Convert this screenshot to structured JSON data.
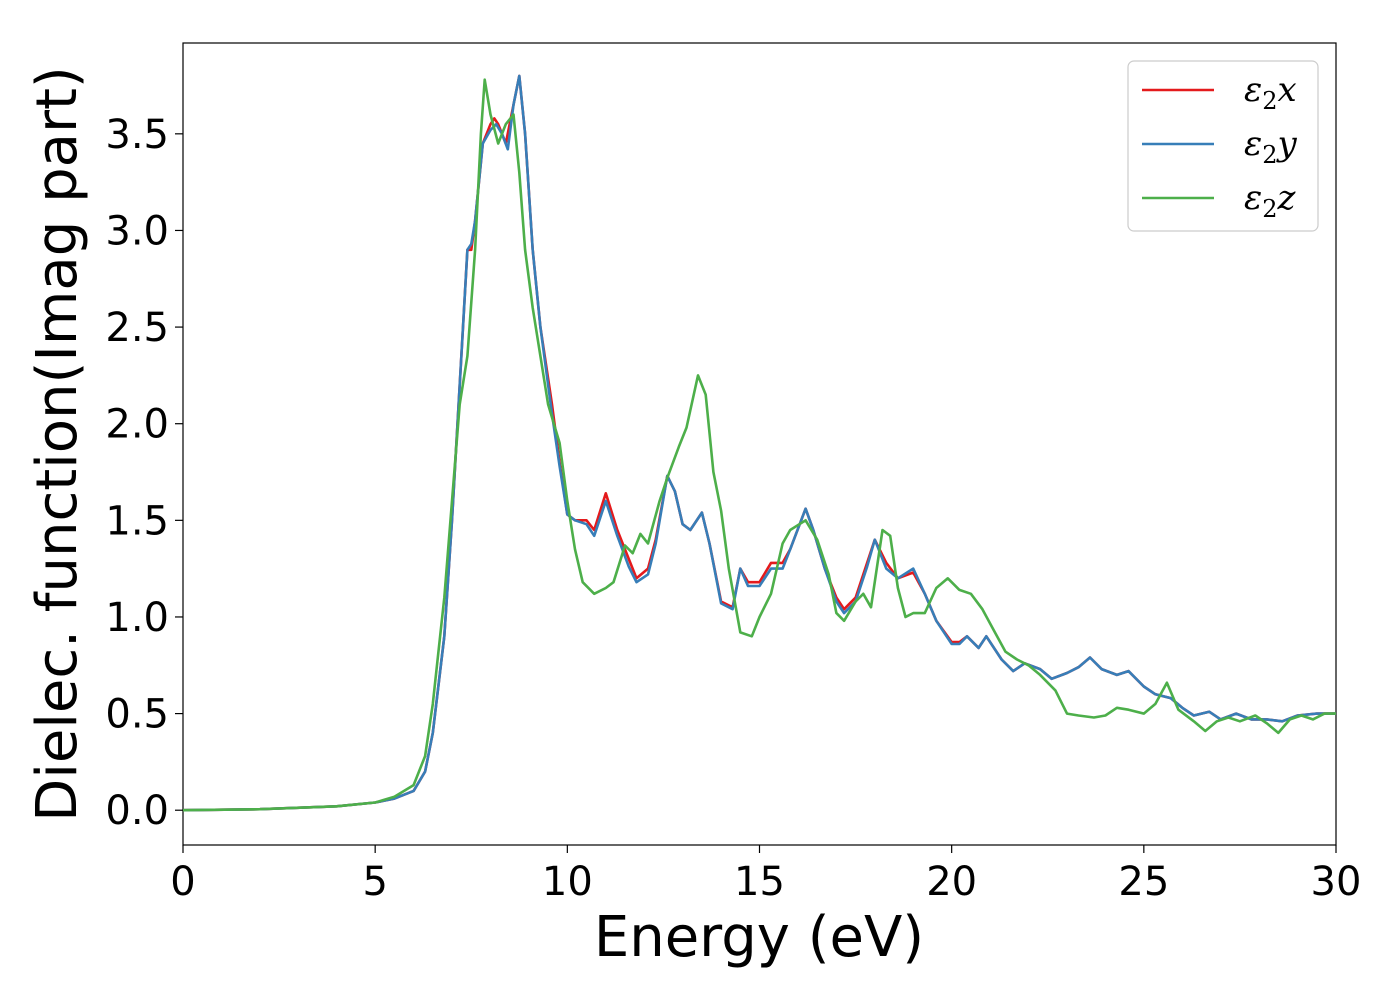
{
  "chart_data": {
    "type": "line",
    "xlabel": "Energy (eV)",
    "ylabel": "Dielec. function(Imag part)",
    "xlim": [
      0,
      30
    ],
    "ylim": [
      -0.18,
      3.97
    ],
    "xticks": [
      0,
      5,
      10,
      15,
      20,
      25,
      30
    ],
    "yticks": [
      0.0,
      0.5,
      1.0,
      1.5,
      2.0,
      2.5,
      3.0,
      3.5
    ],
    "xtick_labels": [
      "0",
      "5",
      "10",
      "15",
      "20",
      "25",
      "30"
    ],
    "ytick_labels": [
      "0.0",
      "0.5",
      "1.0",
      "1.5",
      "2.0",
      "2.5",
      "3.0",
      "3.5"
    ],
    "grid": false,
    "legend_position": "top-right",
    "legend": [
      {
        "base": "ε",
        "sub": "2",
        "suffix": "x",
        "color": "#e41a1c"
      },
      {
        "base": "ε",
        "sub": "2",
        "suffix": "y",
        "color": "#377eb8"
      },
      {
        "base": "ε",
        "sub": "2",
        "suffix": "z",
        "color": "#4daf4a"
      }
    ],
    "series": [
      {
        "name": "ε2x",
        "color": "#e41a1c",
        "points": [
          [
            0,
            0
          ],
          [
            2,
            0.005
          ],
          [
            4,
            0.02
          ],
          [
            5,
            0.04
          ],
          [
            5.5,
            0.06
          ],
          [
            6,
            0.1
          ],
          [
            6.3,
            0.2
          ],
          [
            6.5,
            0.4
          ],
          [
            6.8,
            0.9
          ],
          [
            7,
            1.5
          ],
          [
            7.2,
            2.2
          ],
          [
            7.4,
            2.9
          ],
          [
            7.5,
            2.9
          ],
          [
            7.6,
            3.05
          ],
          [
            7.8,
            3.45
          ],
          [
            8,
            3.55
          ],
          [
            8.1,
            3.58
          ],
          [
            8.2,
            3.55
          ],
          [
            8.4,
            3.45
          ],
          [
            8.6,
            3.65
          ],
          [
            8.75,
            3.8
          ],
          [
            8.9,
            3.5
          ],
          [
            9.1,
            2.9
          ],
          [
            9.3,
            2.5
          ],
          [
            9.6,
            2.1
          ],
          [
            9.8,
            1.8
          ],
          [
            10,
            1.53
          ],
          [
            10.2,
            1.5
          ],
          [
            10.5,
            1.5
          ],
          [
            10.7,
            1.45
          ],
          [
            11,
            1.64
          ],
          [
            11.3,
            1.45
          ],
          [
            11.6,
            1.3
          ],
          [
            11.8,
            1.2
          ],
          [
            12.1,
            1.25
          ],
          [
            12.3,
            1.4
          ],
          [
            12.6,
            1.73
          ],
          [
            12.8,
            1.65
          ],
          [
            13,
            1.48
          ],
          [
            13.2,
            1.45
          ],
          [
            13.5,
            1.54
          ],
          [
            13.7,
            1.38
          ],
          [
            14,
            1.08
          ],
          [
            14.3,
            1.05
          ],
          [
            14.5,
            1.25
          ],
          [
            14.7,
            1.18
          ],
          [
            15,
            1.18
          ],
          [
            15.3,
            1.28
          ],
          [
            15.6,
            1.28
          ],
          [
            15.8,
            1.35
          ],
          [
            16.2,
            1.56
          ],
          [
            16.4,
            1.45
          ],
          [
            16.7,
            1.25
          ],
          [
            17,
            1.1
          ],
          [
            17.2,
            1.04
          ],
          [
            17.5,
            1.1
          ],
          [
            17.8,
            1.28
          ],
          [
            18,
            1.4
          ],
          [
            18.3,
            1.28
          ],
          [
            18.6,
            1.2
          ],
          [
            19,
            1.23
          ],
          [
            19.3,
            1.12
          ],
          [
            19.6,
            0.98
          ],
          [
            20,
            0.87
          ],
          [
            20.2,
            0.87
          ],
          [
            20.4,
            0.9
          ],
          [
            20.7,
            0.84
          ],
          [
            20.9,
            0.9
          ],
          [
            21.3,
            0.78
          ],
          [
            21.6,
            0.72
          ],
          [
            21.9,
            0.76
          ],
          [
            22.3,
            0.73
          ],
          [
            22.6,
            0.68
          ],
          [
            23,
            0.71
          ],
          [
            23.3,
            0.74
          ],
          [
            23.6,
            0.79
          ],
          [
            23.9,
            0.73
          ],
          [
            24.3,
            0.7
          ],
          [
            24.6,
            0.72
          ],
          [
            25,
            0.64
          ],
          [
            25.3,
            0.6
          ],
          [
            25.7,
            0.58
          ],
          [
            26,
            0.53
          ],
          [
            26.3,
            0.49
          ],
          [
            26.7,
            0.51
          ],
          [
            27,
            0.47
          ],
          [
            27.4,
            0.5
          ],
          [
            27.8,
            0.47
          ],
          [
            28.2,
            0.47
          ],
          [
            28.6,
            0.46
          ],
          [
            29,
            0.49
          ],
          [
            29.5,
            0.5
          ],
          [
            30,
            0.5
          ]
        ]
      },
      {
        "name": "ε2y",
        "color": "#377eb8",
        "points": [
          [
            0,
            0
          ],
          [
            2,
            0.005
          ],
          [
            4,
            0.02
          ],
          [
            5,
            0.04
          ],
          [
            5.5,
            0.06
          ],
          [
            6,
            0.1
          ],
          [
            6.3,
            0.2
          ],
          [
            6.5,
            0.4
          ],
          [
            6.8,
            0.9
          ],
          [
            7,
            1.5
          ],
          [
            7.2,
            2.2
          ],
          [
            7.4,
            2.9
          ],
          [
            7.5,
            2.93
          ],
          [
            7.6,
            3.05
          ],
          [
            7.8,
            3.45
          ],
          [
            8,
            3.52
          ],
          [
            8.15,
            3.55
          ],
          [
            8.3,
            3.5
          ],
          [
            8.45,
            3.42
          ],
          [
            8.6,
            3.65
          ],
          [
            8.75,
            3.8
          ],
          [
            8.9,
            3.5
          ],
          [
            9.1,
            2.9
          ],
          [
            9.3,
            2.5
          ],
          [
            9.6,
            2.05
          ],
          [
            9.8,
            1.78
          ],
          [
            10,
            1.53
          ],
          [
            10.2,
            1.5
          ],
          [
            10.5,
            1.48
          ],
          [
            10.7,
            1.42
          ],
          [
            11,
            1.6
          ],
          [
            11.3,
            1.42
          ],
          [
            11.6,
            1.26
          ],
          [
            11.8,
            1.18
          ],
          [
            12.1,
            1.22
          ],
          [
            12.3,
            1.38
          ],
          [
            12.6,
            1.73
          ],
          [
            12.8,
            1.65
          ],
          [
            13,
            1.48
          ],
          [
            13.2,
            1.45
          ],
          [
            13.5,
            1.54
          ],
          [
            13.7,
            1.38
          ],
          [
            14,
            1.07
          ],
          [
            14.3,
            1.04
          ],
          [
            14.5,
            1.25
          ],
          [
            14.7,
            1.16
          ],
          [
            15,
            1.16
          ],
          [
            15.3,
            1.25
          ],
          [
            15.6,
            1.25
          ],
          [
            15.8,
            1.35
          ],
          [
            16.2,
            1.56
          ],
          [
            16.4,
            1.45
          ],
          [
            16.7,
            1.25
          ],
          [
            17,
            1.08
          ],
          [
            17.2,
            1.02
          ],
          [
            17.5,
            1.08
          ],
          [
            17.8,
            1.26
          ],
          [
            18,
            1.4
          ],
          [
            18.3,
            1.25
          ],
          [
            18.6,
            1.2
          ],
          [
            19,
            1.25
          ],
          [
            19.3,
            1.12
          ],
          [
            19.6,
            0.98
          ],
          [
            20,
            0.86
          ],
          [
            20.2,
            0.86
          ],
          [
            20.4,
            0.9
          ],
          [
            20.7,
            0.84
          ],
          [
            20.9,
            0.9
          ],
          [
            21.3,
            0.78
          ],
          [
            21.6,
            0.72
          ],
          [
            21.9,
            0.76
          ],
          [
            22.3,
            0.73
          ],
          [
            22.6,
            0.68
          ],
          [
            23,
            0.71
          ],
          [
            23.3,
            0.74
          ],
          [
            23.6,
            0.79
          ],
          [
            23.9,
            0.73
          ],
          [
            24.3,
            0.7
          ],
          [
            24.6,
            0.72
          ],
          [
            25,
            0.64
          ],
          [
            25.3,
            0.6
          ],
          [
            25.7,
            0.58
          ],
          [
            26,
            0.53
          ],
          [
            26.3,
            0.49
          ],
          [
            26.7,
            0.51
          ],
          [
            27,
            0.47
          ],
          [
            27.4,
            0.5
          ],
          [
            27.8,
            0.47
          ],
          [
            28.2,
            0.47
          ],
          [
            28.6,
            0.46
          ],
          [
            29,
            0.49
          ],
          [
            29.5,
            0.5
          ],
          [
            30,
            0.5
          ]
        ]
      },
      {
        "name": "ε2z",
        "color": "#4daf4a",
        "points": [
          [
            0,
            0
          ],
          [
            2,
            0.005
          ],
          [
            4,
            0.02
          ],
          [
            5,
            0.04
          ],
          [
            5.5,
            0.07
          ],
          [
            6,
            0.13
          ],
          [
            6.3,
            0.28
          ],
          [
            6.5,
            0.55
          ],
          [
            6.8,
            1.1
          ],
          [
            7,
            1.6
          ],
          [
            7.2,
            2.1
          ],
          [
            7.4,
            2.35
          ],
          [
            7.6,
            2.9
          ],
          [
            7.75,
            3.5
          ],
          [
            7.85,
            3.78
          ],
          [
            8,
            3.6
          ],
          [
            8.2,
            3.45
          ],
          [
            8.4,
            3.55
          ],
          [
            8.6,
            3.6
          ],
          [
            8.75,
            3.3
          ],
          [
            8.9,
            2.9
          ],
          [
            9.1,
            2.6
          ],
          [
            9.3,
            2.35
          ],
          [
            9.5,
            2.1
          ],
          [
            9.8,
            1.9
          ],
          [
            10,
            1.6
          ],
          [
            10.2,
            1.35
          ],
          [
            10.4,
            1.18
          ],
          [
            10.7,
            1.12
          ],
          [
            11,
            1.15
          ],
          [
            11.2,
            1.18
          ],
          [
            11.5,
            1.37
          ],
          [
            11.7,
            1.33
          ],
          [
            11.9,
            1.43
          ],
          [
            12.1,
            1.38
          ],
          [
            12.4,
            1.6
          ],
          [
            12.6,
            1.72
          ],
          [
            12.9,
            1.88
          ],
          [
            13.1,
            1.98
          ],
          [
            13.4,
            2.25
          ],
          [
            13.6,
            2.15
          ],
          [
            13.8,
            1.75
          ],
          [
            14,
            1.55
          ],
          [
            14.2,
            1.25
          ],
          [
            14.5,
            0.92
          ],
          [
            14.8,
            0.9
          ],
          [
            15,
            1.0
          ],
          [
            15.3,
            1.12
          ],
          [
            15.6,
            1.38
          ],
          [
            15.8,
            1.45
          ],
          [
            16.2,
            1.5
          ],
          [
            16.5,
            1.4
          ],
          [
            16.8,
            1.22
          ],
          [
            17,
            1.02
          ],
          [
            17.2,
            0.98
          ],
          [
            17.5,
            1.08
          ],
          [
            17.7,
            1.12
          ],
          [
            17.9,
            1.05
          ],
          [
            18.2,
            1.45
          ],
          [
            18.4,
            1.42
          ],
          [
            18.6,
            1.15
          ],
          [
            18.8,
            1.0
          ],
          [
            19,
            1.02
          ],
          [
            19.3,
            1.02
          ],
          [
            19.6,
            1.15
          ],
          [
            19.9,
            1.2
          ],
          [
            20.2,
            1.14
          ],
          [
            20.5,
            1.12
          ],
          [
            20.8,
            1.04
          ],
          [
            21.1,
            0.93
          ],
          [
            21.4,
            0.82
          ],
          [
            21.7,
            0.78
          ],
          [
            22,
            0.75
          ],
          [
            22.3,
            0.7
          ],
          [
            22.7,
            0.62
          ],
          [
            23,
            0.5
          ],
          [
            23.3,
            0.49
          ],
          [
            23.7,
            0.48
          ],
          [
            24,
            0.49
          ],
          [
            24.3,
            0.53
          ],
          [
            24.6,
            0.52
          ],
          [
            25,
            0.5
          ],
          [
            25.3,
            0.55
          ],
          [
            25.6,
            0.66
          ],
          [
            25.9,
            0.52
          ],
          [
            26.3,
            0.46
          ],
          [
            26.6,
            0.41
          ],
          [
            26.9,
            0.46
          ],
          [
            27.2,
            0.48
          ],
          [
            27.5,
            0.46
          ],
          [
            27.9,
            0.49
          ],
          [
            28.2,
            0.45
          ],
          [
            28.5,
            0.4
          ],
          [
            28.8,
            0.47
          ],
          [
            29.1,
            0.49
          ],
          [
            29.4,
            0.47
          ],
          [
            29.7,
            0.5
          ],
          [
            30,
            0.5
          ]
        ]
      }
    ]
  }
}
